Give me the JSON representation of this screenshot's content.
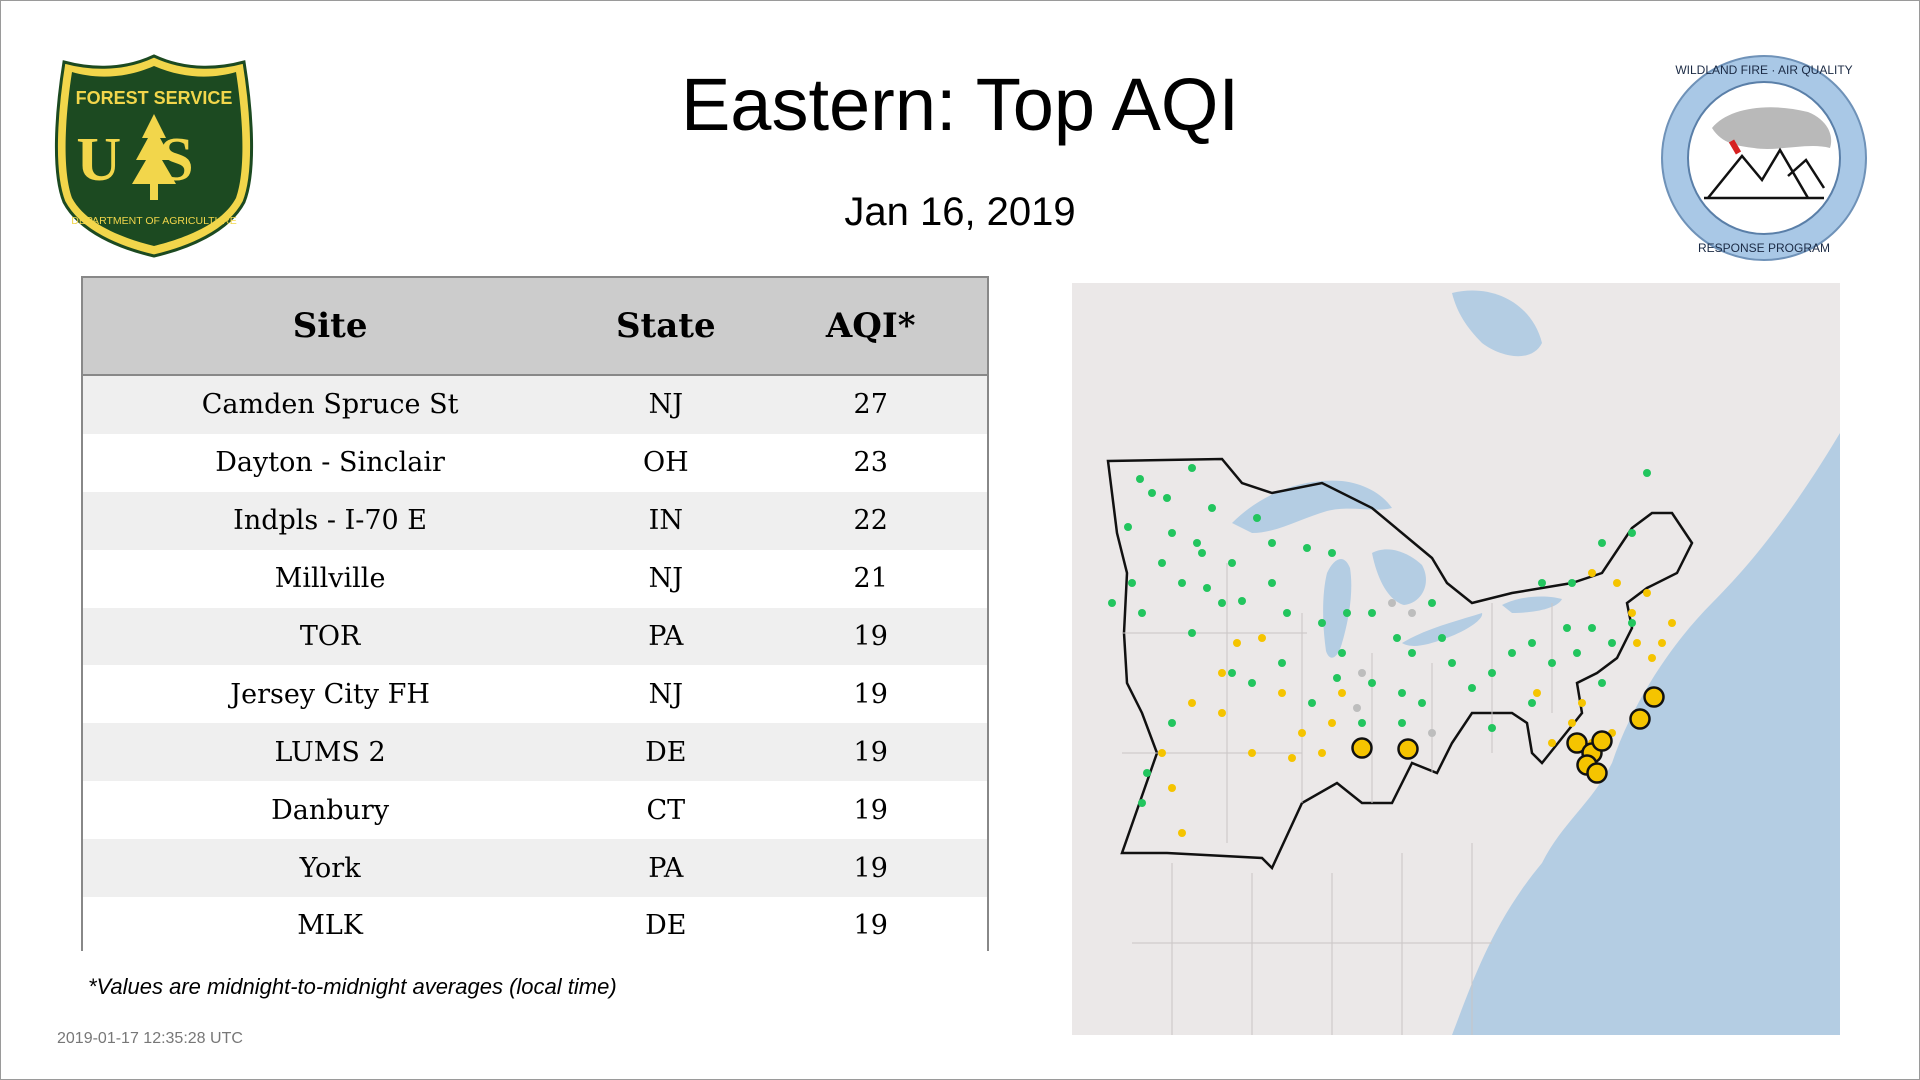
{
  "title": "Eastern: Top AQI",
  "date": "Jan 16, 2019",
  "logos": {
    "forest_service": {
      "top_text": "FOREST SERVICE",
      "letters": "US",
      "bottom_text": "DEPARTMENT OF AGRICULTURE"
    },
    "wildland": {
      "top_text": "WILDLAND FIRE · AIR QUALITY",
      "bottom_text": "RESPONSE PROGRAM"
    }
  },
  "table": {
    "headers": {
      "site": "Site",
      "state": "State",
      "aqi": "AQI*"
    },
    "rows": [
      {
        "site": "Camden Spruce St",
        "state": "NJ",
        "aqi": "27"
      },
      {
        "site": "Dayton - Sinclair",
        "state": "OH",
        "aqi": "23"
      },
      {
        "site": "Indpls - I-70 E",
        "state": "IN",
        "aqi": "22"
      },
      {
        "site": "Millville",
        "state": "NJ",
        "aqi": "21"
      },
      {
        "site": "TOR",
        "state": "PA",
        "aqi": "19"
      },
      {
        "site": "Jersey City FH",
        "state": "NJ",
        "aqi": "19"
      },
      {
        "site": "LUMS 2",
        "state": "DE",
        "aqi": "19"
      },
      {
        "site": "Danbury",
        "state": "CT",
        "aqi": "19"
      },
      {
        "site": "York",
        "state": "PA",
        "aqi": "19"
      },
      {
        "site": "MLK",
        "state": "DE",
        "aqi": "19"
      }
    ]
  },
  "footnote": "*Values are midnight-to-midnight averages (local time)",
  "timestamp": "2019-01-17 12:35:28 UTC",
  "colors": {
    "good": "#22c55e",
    "moderate": "#f5c400",
    "no_data": "#bdbdbd",
    "fs_green": "#1c4a21",
    "fs_gold": "#f2d64b",
    "water": "#b4cde3",
    "land": "#ececec"
  }
}
